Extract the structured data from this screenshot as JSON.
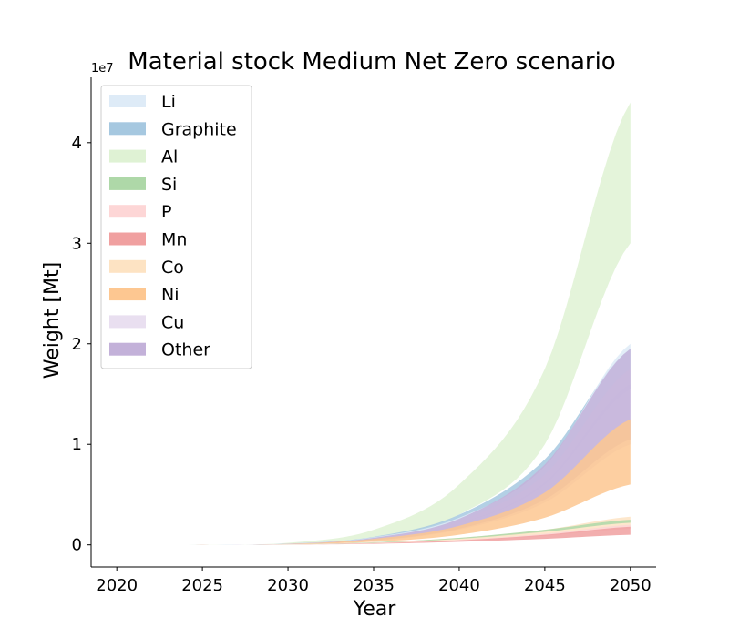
{
  "chart_data": {
    "type": "area",
    "title": "Material stock Medium Net Zero scenario",
    "xlabel": "Year",
    "ylabel": "Weight [Mt]",
    "y_offset_label": "1e7",
    "xlim": [
      2018.5,
      2051.5
    ],
    "ylim": [
      -0.22,
      4.65
    ],
    "x_ticks": [
      2020,
      2025,
      2030,
      2035,
      2040,
      2045,
      2050
    ],
    "y_ticks": [
      0,
      1,
      2,
      3,
      4
    ],
    "grid": false,
    "legend_position": "upper-left",
    "x": [
      2020,
      2025,
      2030,
      2035,
      2040,
      2045,
      2050
    ],
    "series": [
      {
        "name": "Li",
        "color": "#deebf7",
        "lower": [
          0,
          0.0004,
          0.009,
          0.06,
          0.21,
          0.62,
          1.6
        ],
        "upper": [
          0,
          0.0005,
          0.011,
          0.075,
          0.27,
          0.78,
          2.0
        ]
      },
      {
        "name": "Graphite",
        "color": "#a6c8e0",
        "lower": [
          0,
          0.0004,
          0.009,
          0.06,
          0.21,
          0.6,
          1.55
        ],
        "upper": [
          0,
          0.0005,
          0.012,
          0.08,
          0.3,
          0.85,
          1.95
        ]
      },
      {
        "name": "Al",
        "color": "#dff2d4",
        "lower": [
          0,
          0.0005,
          0.012,
          0.08,
          0.3,
          1.0,
          3.0
        ],
        "upper": [
          0,
          0.001,
          0.02,
          0.15,
          0.6,
          1.75,
          4.4
        ]
      },
      {
        "name": "Si",
        "color": "#aed8a8",
        "lower": [
          0,
          0.0001,
          0.003,
          0.02,
          0.06,
          0.13,
          0.22
        ],
        "upper": [
          0,
          0.00015,
          0.004,
          0.025,
          0.07,
          0.15,
          0.25
        ]
      },
      {
        "name": "P",
        "color": "#fdd6d6",
        "lower": [
          0,
          0.0001,
          0.003,
          0.015,
          0.04,
          0.09,
          0.16
        ],
        "upper": [
          0,
          0.00015,
          0.004,
          0.02,
          0.05,
          0.11,
          0.2
        ]
      },
      {
        "name": "Mn",
        "color": "#f0a0a0",
        "lower": [
          0,
          0.0001,
          0.002,
          0.01,
          0.03,
          0.06,
          0.1
        ],
        "upper": [
          0,
          0.0002,
          0.003,
          0.015,
          0.045,
          0.1,
          0.18
        ]
      },
      {
        "name": "Co",
        "color": "#fde3c3",
        "lower": [
          0,
          0.0001,
          0.002,
          0.015,
          0.04,
          0.1,
          0.18
        ],
        "upper": [
          0,
          0.0002,
          0.004,
          0.025,
          0.07,
          0.15,
          0.28
        ]
      },
      {
        "name": "Ni",
        "color": "#fdc791",
        "lower": [
          0,
          0.0002,
          0.005,
          0.03,
          0.1,
          0.27,
          0.6
        ],
        "upper": [
          0,
          0.0003,
          0.008,
          0.06,
          0.19,
          0.52,
          1.25
        ]
      },
      {
        "name": "Cu",
        "color": "#e9dff0",
        "lower": [
          0,
          0.0003,
          0.007,
          0.04,
          0.15,
          0.42,
          1.0
        ],
        "upper": [
          0,
          0.0004,
          0.009,
          0.065,
          0.24,
          0.7,
          1.75
        ]
      },
      {
        "name": "Other",
        "color": "#c3b1d9",
        "lower": [
          0,
          0.0003,
          0.007,
          0.045,
          0.16,
          0.45,
          1.05
        ],
        "upper": [
          0,
          0.0004,
          0.01,
          0.07,
          0.26,
          0.8,
          1.95
        ]
      }
    ]
  }
}
